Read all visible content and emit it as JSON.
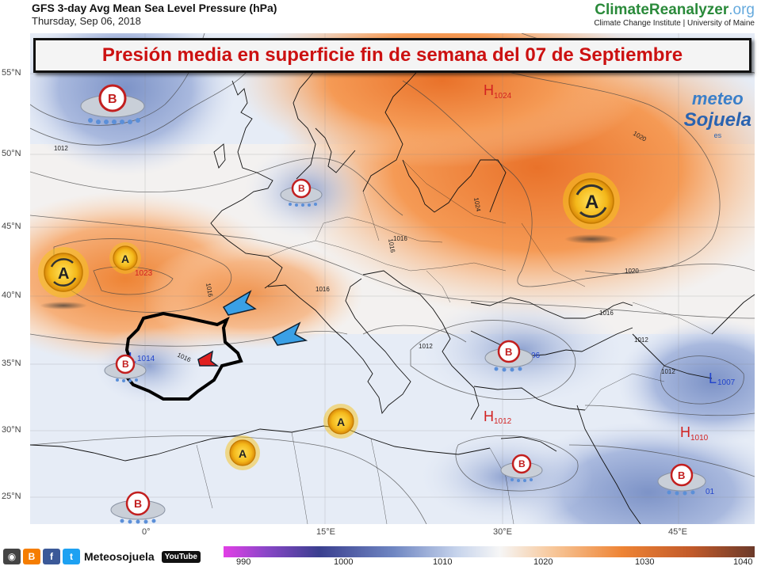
{
  "header": {
    "title": "GFS 3-day Avg Mean Sea Level Pressure (hPa)",
    "date": "Thursday, Sep 06, 2018"
  },
  "brand": {
    "name_main": "ClimateReanalyzer",
    "name_suffix": ".org",
    "subtitle": "Climate Change Institute | University of Maine"
  },
  "banner": {
    "text": "Presión media en superficie fin de semana del 07 de Septiembre"
  },
  "watermark": {
    "line1": "meteo",
    "line2": "Sojuela",
    "line3": "es"
  },
  "axes": {
    "lat_labels": [
      "55°N",
      "50°N",
      "45°N",
      "40°N",
      "35°N",
      "30°N",
      "25°N"
    ],
    "lon_labels": [
      "0°",
      "15°E",
      "30°E",
      "45°E"
    ]
  },
  "map": {
    "isobar_labels": [
      "1012",
      "1020",
      "1016",
      "1024",
      "1016",
      "1016",
      "1012",
      "1016",
      "1012",
      "1016",
      "1020",
      "1016",
      "1012"
    ],
    "centers": [
      {
        "symbol": "H",
        "value": "1024",
        "color": "#d22222"
      },
      {
        "symbol": "L",
        "value": "1014",
        "color": "#2244cc"
      },
      {
        "symbol": "H",
        "value": "1012",
        "color": "#d22222"
      },
      {
        "symbol": "L",
        "value": "1007",
        "color": "#2244cc"
      },
      {
        "symbol": "H",
        "value": "1010",
        "color": "#d22222"
      }
    ],
    "partial_values": [
      "1023",
      "06",
      "01"
    ],
    "badges": {
      "high_letter": "A",
      "low_letter": "B"
    }
  },
  "footer": {
    "social_name": "Meteosojuela",
    "youtube_label": "YouTube",
    "social_icons": [
      "camera-icon",
      "blogger-icon",
      "facebook-icon",
      "twitter-icon"
    ]
  },
  "colorbar": {
    "labels": [
      "990",
      "1000",
      "1010",
      "1020",
      "1030",
      "1040"
    ]
  },
  "colors": {
    "high": "#f08a3a",
    "low": "#7d93c7",
    "title_red": "#cc1111"
  }
}
